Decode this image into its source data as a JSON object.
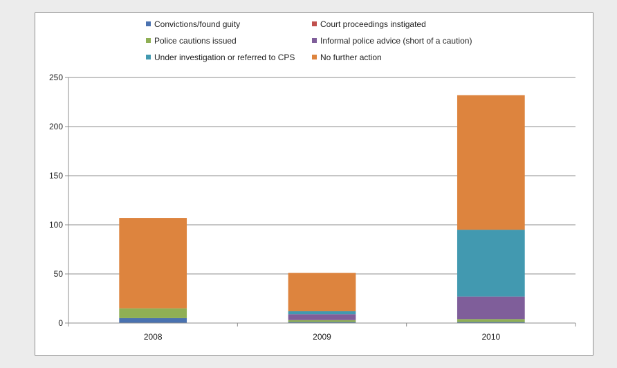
{
  "chart_data": {
    "type": "bar",
    "stacked": true,
    "title": "",
    "xlabel": "",
    "ylabel": "",
    "categories": [
      "2008",
      "2009",
      "2010"
    ],
    "ylim": [
      0,
      250
    ],
    "yticks": [
      0,
      50,
      100,
      150,
      200,
      250
    ],
    "grid": true,
    "legend_position": "top",
    "series": [
      {
        "name": "Convictions/found guity",
        "color": "#4a72b0",
        "values": [
          5,
          1,
          1
        ]
      },
      {
        "name": "Court proceedings instigated",
        "color": "#c0504d",
        "values": [
          0,
          0,
          0
        ]
      },
      {
        "name": "Police cautions issued",
        "color": "#8faf55",
        "values": [
          10,
          2,
          3
        ]
      },
      {
        "name": "Informal police advice (short of a caution)",
        "color": "#7f5e9a",
        "values": [
          0,
          6,
          23
        ]
      },
      {
        "name": "Under investigation  or referred to CPS",
        "color": "#4299b0",
        "values": [
          0,
          3,
          68
        ]
      },
      {
        "name": "No further action",
        "color": "#dd843e",
        "values": [
          92,
          39,
          137
        ]
      }
    ]
  }
}
